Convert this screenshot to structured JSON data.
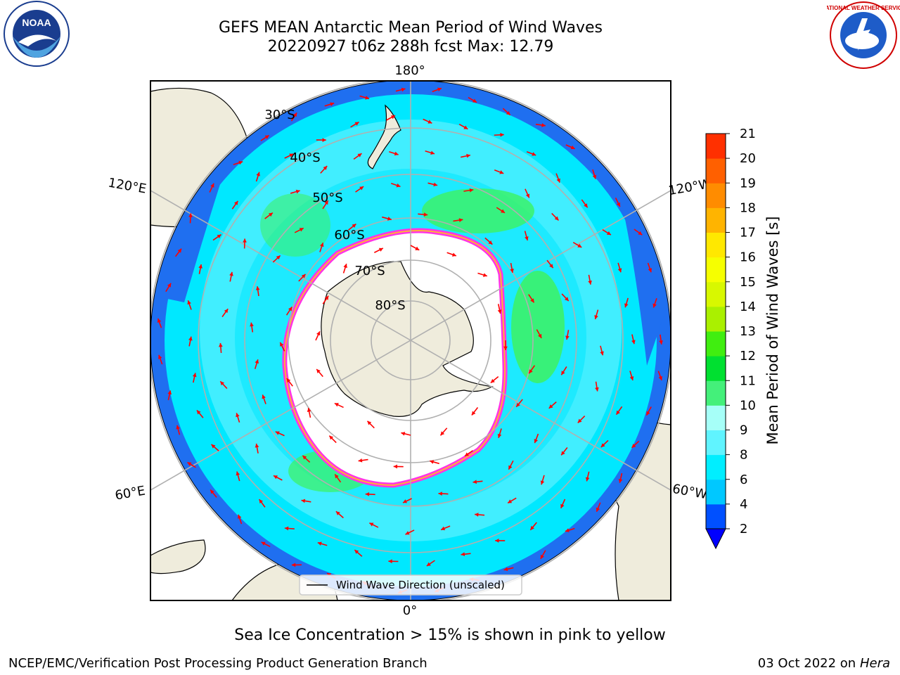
{
  "title": {
    "line1": "GEFS MEAN Antarctic Mean Period of Wind Waves",
    "line2": "20220927 t06z 288h fcst   Max: 12.79"
  },
  "map": {
    "projection": "south polar stereographic",
    "longitude_labels": {
      "top": "180°",
      "bottom": "0°",
      "upper_left": "120°E",
      "lower_left": "60°E",
      "upper_right": "120°W",
      "lower_right": "60°W"
    },
    "latitude_labels": [
      "30°S",
      "40°S",
      "50°S",
      "60°S",
      "70°S",
      "80°S"
    ],
    "legend_label": "Wind Wave Direction (unscaled)",
    "colors": {
      "land": "#efecdc",
      "ocean_dark": "#1f6ff0",
      "ocean_cyan": "#00e8ff",
      "ocean_light": "#57f0ff",
      "green": "#3cf26a",
      "sea_ice_pink": "#ff33e6",
      "sea_ice_yellow": "#ffb03a",
      "arrow": "#ff0000",
      "grid": "#b0b0b0"
    }
  },
  "colorbar": {
    "label": "Mean Period of Wind Waves [s]",
    "ticks": [
      "2",
      "4",
      "6",
      "8",
      "9",
      "10",
      "11",
      "12",
      "13",
      "14",
      "15",
      "16",
      "17",
      "18",
      "19",
      "20",
      "21"
    ],
    "colors": [
      "#0050ff",
      "#00c8ff",
      "#00eeff",
      "#60f4ff",
      "#a6fff8",
      "#44f07a",
      "#00e030",
      "#40ee10",
      "#aaf000",
      "#d8f800",
      "#f6ff00",
      "#ffe800",
      "#ffb400",
      "#ff8c00",
      "#ff6000",
      "#ff3000",
      "#ff0000"
    ],
    "under_color": "#0000ff"
  },
  "caption": "Sea Ice Concentration > 15% is shown in pink to yellow",
  "footer": {
    "left": "NCEP/EMC/Verification Post Processing Product Generation Branch",
    "right_date": "03 Oct 2022 on ",
    "right_host": "Hera"
  },
  "logos": {
    "noaa_text": "NOAA",
    "nws_text": "NATIONAL WEATHER SERVICE"
  }
}
